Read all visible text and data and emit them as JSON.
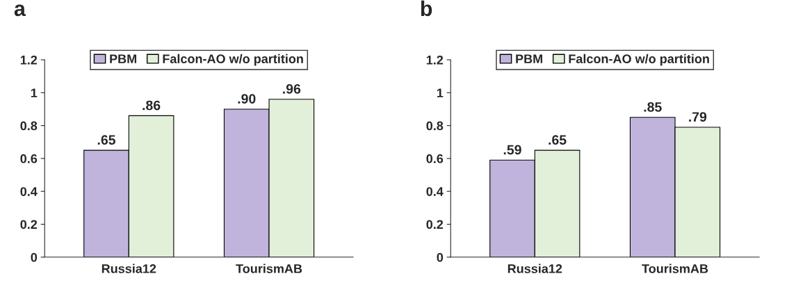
{
  "chart_data": [
    {
      "type": "bar",
      "title": "a",
      "categories": [
        "Russia12",
        "TourismAB"
      ],
      "ylim": [
        0,
        1.2
      ],
      "yticks": [
        0,
        0.2,
        0.4,
        0.6,
        0.8,
        1,
        1.2
      ],
      "grid": false,
      "legend": "top",
      "series": [
        {
          "name": "PBM",
          "color": "#c0b4dc",
          "values": [
            0.65,
            0.9
          ],
          "value_labels": [
            ".65",
            ".90"
          ]
        },
        {
          "name": "Falcon-AO w/o partition",
          "color": "#e2efd9",
          "values": [
            0.86,
            0.96
          ],
          "value_labels": [
            ".86",
            ".96"
          ]
        }
      ]
    },
    {
      "type": "bar",
      "title": "b",
      "categories": [
        "Russia12",
        "TourismAB"
      ],
      "ylim": [
        0,
        1.2
      ],
      "yticks": [
        0,
        0.2,
        0.4,
        0.6,
        0.8,
        1,
        1.2
      ],
      "grid": false,
      "legend": "top",
      "series": [
        {
          "name": "PBM",
          "color": "#c0b4dc",
          "values": [
            0.59,
            0.85
          ],
          "value_labels": [
            ".59",
            ".85"
          ]
        },
        {
          "name": "Falcon-AO w/o partition",
          "color": "#e2efd9",
          "values": [
            0.65,
            0.79
          ],
          "value_labels": [
            ".65",
            ".79"
          ]
        }
      ]
    }
  ]
}
